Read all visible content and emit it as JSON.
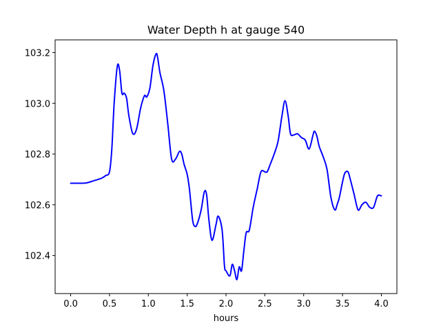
{
  "chart_data": {
    "type": "line",
    "title": "Water Depth h at gauge 540",
    "xlabel": "hours",
    "ylabel": "",
    "xlim": [
      -0.2,
      4.2
    ],
    "ylim": [
      102.25,
      103.25
    ],
    "x_ticks": [
      0.0,
      0.5,
      1.0,
      1.5,
      2.0,
      2.5,
      3.0,
      3.5,
      4.0
    ],
    "x_tick_labels": [
      "0.0",
      "0.5",
      "1.0",
      "1.5",
      "2.0",
      "2.5",
      "3.0",
      "3.5",
      "4.0"
    ],
    "y_ticks": [
      102.4,
      102.6,
      102.8,
      103.0,
      103.2
    ],
    "y_tick_labels": [
      "102.4",
      "102.6",
      "102.8",
      "103.0",
      "103.2"
    ],
    "grid": false,
    "line_color": "#0000ff",
    "series": [
      {
        "x": [
          0.0,
          0.1,
          0.2,
          0.3,
          0.4,
          0.45,
          0.5,
          0.53,
          0.56,
          0.6,
          0.63,
          0.66,
          0.69,
          0.72,
          0.75,
          0.8,
          0.85,
          0.9,
          0.95,
          0.98,
          1.02,
          1.06,
          1.1,
          1.12,
          1.15,
          1.2,
          1.25,
          1.3,
          1.35,
          1.4,
          1.43,
          1.46,
          1.5,
          1.53,
          1.57,
          1.6,
          1.63,
          1.68,
          1.72,
          1.75,
          1.78,
          1.82,
          1.87,
          1.9,
          1.95,
          1.98,
          2.0,
          2.05,
          2.08,
          2.11,
          2.14,
          2.17,
          2.2,
          2.23,
          2.26,
          2.3,
          2.35,
          2.4,
          2.45,
          2.5,
          2.53,
          2.57,
          2.62,
          2.67,
          2.72,
          2.76,
          2.8,
          2.83,
          2.87,
          2.92,
          2.97,
          3.02,
          3.07,
          3.12,
          3.14,
          3.17,
          3.2,
          3.25,
          3.3,
          3.35,
          3.4,
          3.43,
          3.46,
          3.5,
          3.53,
          3.57,
          3.6,
          3.65,
          3.7,
          3.75,
          3.8,
          3.85,
          3.9,
          3.95,
          4.0
        ],
        "values": [
          102.685,
          102.685,
          102.686,
          102.695,
          102.705,
          102.715,
          102.73,
          102.82,
          103.0,
          103.145,
          103.13,
          103.04,
          103.04,
          103.02,
          102.95,
          102.88,
          102.9,
          102.98,
          103.03,
          103.025,
          103.06,
          103.15,
          103.195,
          103.18,
          103.12,
          103.05,
          102.92,
          102.78,
          102.78,
          102.81,
          102.8,
          102.76,
          102.72,
          102.66,
          102.54,
          102.515,
          102.525,
          102.58,
          102.65,
          102.64,
          102.54,
          102.46,
          102.52,
          102.555,
          102.5,
          102.36,
          102.34,
          102.32,
          102.365,
          102.34,
          102.305,
          102.355,
          102.34,
          102.42,
          102.49,
          102.5,
          102.59,
          102.66,
          102.73,
          102.73,
          102.73,
          102.76,
          102.8,
          102.85,
          102.95,
          103.01,
          102.95,
          102.88,
          102.875,
          102.88,
          102.865,
          102.855,
          102.82,
          102.875,
          102.89,
          102.87,
          102.83,
          102.79,
          102.74,
          102.63,
          102.58,
          102.6,
          102.63,
          102.69,
          102.725,
          102.73,
          102.7,
          102.64,
          102.58,
          102.6,
          102.61,
          102.59,
          102.59,
          102.635,
          102.635
        ]
      }
    ]
  }
}
